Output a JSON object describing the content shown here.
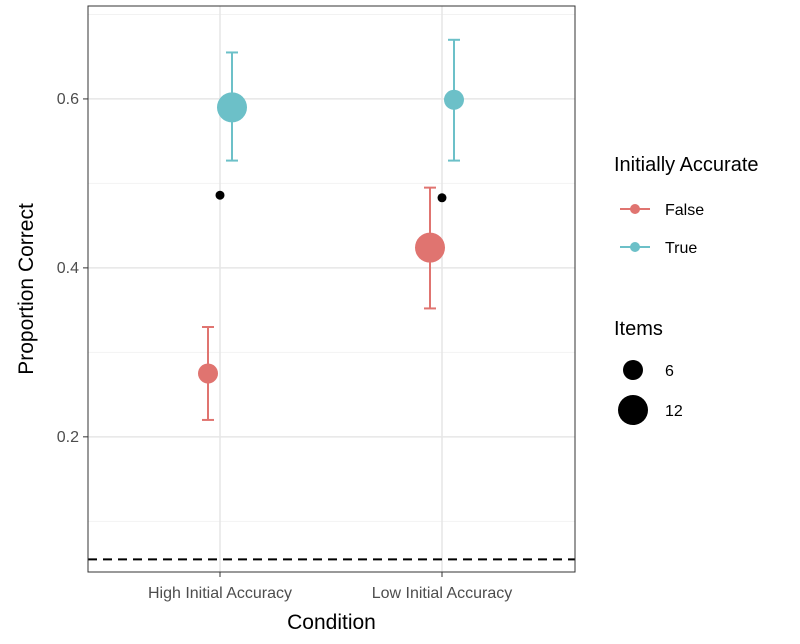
{
  "chart_data": {
    "type": "scatter",
    "xlabel": "Condition",
    "ylabel": "Proportion Correct",
    "categories": [
      "High Initial Accuracy",
      "Low Initial Accuracy"
    ],
    "y_ticks": [
      0.2,
      0.4,
      0.6
    ],
    "y_tick_labels": [
      "0.2",
      "0.4",
      "0.6"
    ],
    "ylim": [
      0.04,
      0.71
    ],
    "grid": true,
    "reference_line": {
      "y": 0.055,
      "style": "dashed"
    },
    "series": [
      {
        "name": "False",
        "color": "#E07470",
        "points": [
          {
            "category": "High Initial Accuracy",
            "y": 0.275,
            "ymin": 0.22,
            "ymax": 0.33,
            "items": 6
          },
          {
            "category": "Low Initial Accuracy",
            "y": 0.424,
            "ymin": 0.352,
            "ymax": 0.495,
            "items": 12
          }
        ]
      },
      {
        "name": "True",
        "color": "#6CC0C8",
        "points": [
          {
            "category": "High Initial Accuracy",
            "y": 0.59,
            "ymin": 0.527,
            "ymax": 0.655,
            "items": 12
          },
          {
            "category": "Low Initial Accuracy",
            "y": 0.599,
            "ymin": 0.527,
            "ymax": 0.67,
            "items": 6
          }
        ]
      }
    ],
    "markers": [
      {
        "category": "High Initial Accuracy",
        "y": 0.486,
        "color": "#000000"
      },
      {
        "category": "Low Initial Accuracy",
        "y": 0.483,
        "color": "#000000"
      }
    ],
    "legend": {
      "position": "right",
      "color_title": "Initially Accurate",
      "color_entries": [
        "False",
        "True"
      ],
      "size_title": "Items",
      "size_entries": [
        "6",
        "12"
      ]
    }
  }
}
